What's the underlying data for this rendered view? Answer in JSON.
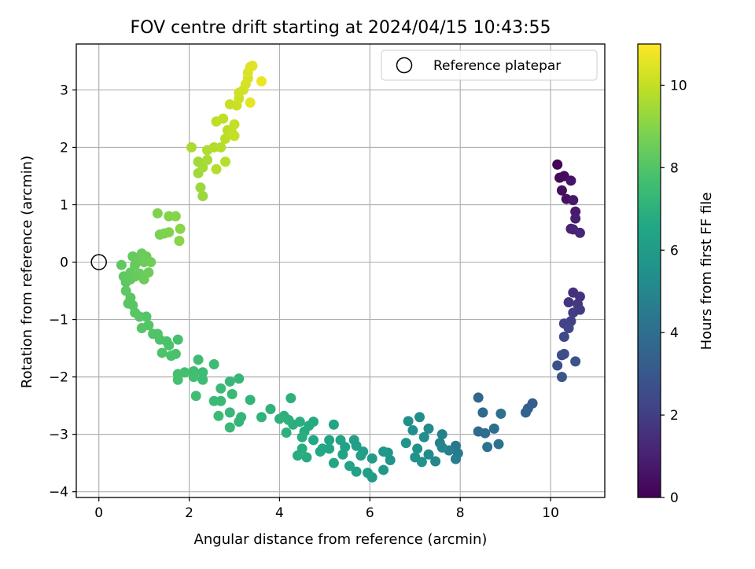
{
  "chart_data": {
    "type": "scatter",
    "title": "FOV centre drift starting at 2024/04/15 10:43:55",
    "xlabel": "Angular distance from reference (arcmin)",
    "ylabel": "Rotation from reference (arcmin)",
    "xlim": [
      -0.5,
      11.2
    ],
    "ylim": [
      -4.1,
      3.8
    ],
    "xticks": [
      0,
      2,
      4,
      6,
      8,
      10
    ],
    "yticks": [
      -4,
      -3,
      -2,
      -1,
      0,
      1,
      2,
      3
    ],
    "grid": true,
    "legend": {
      "location": "top-right",
      "entries": [
        "Reference platepar"
      ]
    },
    "reference_point": {
      "x": 0,
      "y": 0,
      "marker": "open-circle"
    },
    "colorbar": {
      "label": "Hours from first FF file",
      "range": [
        0,
        11
      ],
      "ticks": [
        0,
        2,
        4,
        6,
        8,
        10
      ],
      "colormap": "viridis"
    },
    "series": [
      {
        "points": [
          [
            10.15,
            1.7,
            0.1
          ],
          [
            10.2,
            1.47,
            0.2
          ],
          [
            10.3,
            1.5,
            0.3
          ],
          [
            10.25,
            1.25,
            0.4
          ],
          [
            10.35,
            1.1,
            0.5
          ],
          [
            10.45,
            1.42,
            0.6
          ],
          [
            10.5,
            1.08,
            0.7
          ],
          [
            10.55,
            0.88,
            0.8
          ],
          [
            10.55,
            0.76,
            0.9
          ],
          [
            10.45,
            0.58,
            1.0
          ],
          [
            10.5,
            0.57,
            1.1
          ],
          [
            10.65,
            0.51,
            1.2
          ],
          [
            10.5,
            -0.53,
            1.5
          ],
          [
            10.65,
            -0.6,
            1.6
          ],
          [
            10.4,
            -0.7,
            1.7
          ],
          [
            10.6,
            -0.73,
            1.8
          ],
          [
            10.65,
            -0.83,
            1.9
          ],
          [
            10.5,
            -0.88,
            2.0
          ],
          [
            10.45,
            -1.03,
            2.1
          ],
          [
            10.3,
            -1.07,
            2.2
          ],
          [
            10.4,
            -1.15,
            2.3
          ],
          [
            10.3,
            -1.3,
            2.4
          ],
          [
            10.25,
            -1.62,
            2.5
          ],
          [
            10.3,
            -1.6,
            2.6
          ],
          [
            10.15,
            -1.8,
            2.7
          ],
          [
            10.55,
            -1.73,
            2.8
          ],
          [
            10.25,
            -2.0,
            2.9
          ],
          [
            9.6,
            -2.46,
            3.2
          ],
          [
            9.5,
            -2.55,
            3.3
          ],
          [
            9.45,
            -2.62,
            3.4
          ],
          [
            8.4,
            -2.36,
            3.6
          ],
          [
            8.5,
            -2.62,
            3.7
          ],
          [
            8.4,
            -2.95,
            3.8
          ],
          [
            8.55,
            -2.98,
            3.9
          ],
          [
            8.75,
            -2.9,
            4.0
          ],
          [
            8.9,
            -2.64,
            4.05
          ],
          [
            8.85,
            -3.17,
            4.1
          ],
          [
            8.6,
            -3.22,
            4.2
          ],
          [
            7.9,
            -3.2,
            4.4
          ],
          [
            7.95,
            -3.33,
            4.5
          ],
          [
            7.9,
            -3.43,
            4.6
          ],
          [
            7.75,
            -3.28,
            4.7
          ],
          [
            7.6,
            -3.0,
            4.8
          ],
          [
            7.55,
            -3.15,
            4.9
          ],
          [
            7.6,
            -3.23,
            5.0
          ],
          [
            7.45,
            -3.47,
            5.1
          ],
          [
            7.3,
            -3.35,
            5.2
          ],
          [
            7.3,
            -2.9,
            5.2
          ],
          [
            7.2,
            -3.05,
            5.3
          ],
          [
            7.1,
            -2.7,
            5.35
          ],
          [
            6.85,
            -2.77,
            5.4
          ],
          [
            6.95,
            -2.93,
            5.45
          ],
          [
            7.05,
            -3.25,
            5.5
          ],
          [
            7.0,
            -3.4,
            5.55
          ],
          [
            7.15,
            -3.48,
            5.6
          ],
          [
            6.8,
            -3.15,
            5.65
          ],
          [
            6.45,
            -3.45,
            5.7
          ],
          [
            6.4,
            -3.32,
            5.8
          ],
          [
            6.3,
            -3.3,
            5.85
          ],
          [
            6.3,
            -3.62,
            5.9
          ],
          [
            6.05,
            -3.42,
            6.0
          ],
          [
            6.05,
            -3.75,
            6.05
          ],
          [
            5.95,
            -3.67,
            6.1
          ],
          [
            5.85,
            -3.3,
            6.1
          ],
          [
            5.8,
            -3.37,
            6.15
          ],
          [
            5.65,
            -3.1,
            6.2
          ],
          [
            5.7,
            -3.2,
            6.2
          ],
          [
            5.7,
            -3.65,
            6.25
          ],
          [
            5.55,
            -3.55,
            6.3
          ],
          [
            5.45,
            -3.22,
            6.3
          ],
          [
            5.4,
            -3.35,
            6.35
          ],
          [
            5.35,
            -3.1,
            6.4
          ],
          [
            5.2,
            -2.83,
            6.4
          ],
          [
            5.1,
            -3.1,
            6.45
          ],
          [
            5.1,
            -3.25,
            6.5
          ],
          [
            5.2,
            -3.5,
            6.5
          ],
          [
            4.95,
            -3.25,
            6.55
          ],
          [
            4.9,
            -3.3,
            6.6
          ],
          [
            4.75,
            -3.1,
            6.6
          ],
          [
            4.75,
            -2.78,
            6.65
          ],
          [
            4.65,
            -2.85,
            6.7
          ],
          [
            4.55,
            -2.95,
            6.7
          ],
          [
            4.6,
            -3.4,
            6.75
          ],
          [
            4.5,
            -3.25,
            6.8
          ],
          [
            4.4,
            -3.37,
            6.8
          ],
          [
            4.5,
            -3.05,
            6.85
          ],
          [
            4.45,
            -2.78,
            6.9
          ],
          [
            4.3,
            -2.83,
            6.9
          ],
          [
            4.2,
            -2.75,
            6.95
          ],
          [
            4.1,
            -2.68,
            6.95
          ],
          [
            4.15,
            -2.97,
            7.0
          ],
          [
            4.25,
            -2.37,
            7.0
          ],
          [
            4.0,
            -2.73,
            7.05
          ],
          [
            3.8,
            -2.56,
            7.1
          ],
          [
            3.6,
            -2.7,
            7.1
          ],
          [
            3.35,
            -2.4,
            7.15
          ],
          [
            3.15,
            -2.7,
            7.2
          ],
          [
            3.1,
            -2.78,
            7.2
          ],
          [
            3.1,
            -2.03,
            7.25
          ],
          [
            2.9,
            -2.08,
            7.3
          ],
          [
            2.9,
            -2.62,
            7.3
          ],
          [
            2.9,
            -2.88,
            7.35
          ],
          [
            2.95,
            -2.3,
            7.35
          ],
          [
            2.7,
            -2.2,
            7.4
          ],
          [
            2.7,
            -2.42,
            7.4
          ],
          [
            2.65,
            -2.68,
            7.45
          ],
          [
            2.55,
            -2.42,
            7.45
          ],
          [
            2.55,
            -1.78,
            7.5
          ],
          [
            2.3,
            -1.92,
            7.5
          ],
          [
            2.3,
            -2.05,
            7.55
          ],
          [
            2.2,
            -1.7,
            7.55
          ],
          [
            2.15,
            -2.33,
            7.6
          ],
          [
            2.1,
            -1.9,
            7.6
          ],
          [
            2.1,
            -2.0,
            7.65
          ],
          [
            1.9,
            -1.92,
            7.7
          ],
          [
            1.75,
            -1.95,
            7.7
          ],
          [
            1.75,
            -2.05,
            7.75
          ],
          [
            1.75,
            -1.35,
            7.75
          ],
          [
            1.7,
            -1.6,
            7.8
          ],
          [
            1.6,
            -1.63,
            7.8
          ],
          [
            1.55,
            -1.45,
            7.85
          ],
          [
            1.5,
            -1.38,
            7.85
          ],
          [
            1.4,
            -1.58,
            7.9
          ],
          [
            1.35,
            -1.35,
            7.9
          ],
          [
            1.3,
            -1.25,
            7.95
          ],
          [
            1.2,
            -1.25,
            7.95
          ],
          [
            1.1,
            -1.1,
            8.0
          ],
          [
            1.05,
            -0.95,
            8.0
          ],
          [
            0.95,
            -1.15,
            8.05
          ],
          [
            0.9,
            -0.95,
            8.05
          ],
          [
            0.8,
            -0.88,
            8.1
          ],
          [
            0.75,
            -0.75,
            8.1
          ],
          [
            0.7,
            -0.62,
            8.15
          ],
          [
            0.65,
            -0.72,
            8.15
          ],
          [
            0.6,
            -0.5,
            8.2
          ],
          [
            0.6,
            -0.35,
            8.2
          ],
          [
            0.55,
            -0.25,
            8.25
          ],
          [
            0.5,
            -0.05,
            8.25
          ],
          [
            0.7,
            -0.18,
            8.3
          ],
          [
            0.7,
            -0.3,
            8.3
          ],
          [
            0.8,
            -0.25,
            8.35
          ],
          [
            0.75,
            0.1,
            8.35
          ],
          [
            0.8,
            -0.05,
            8.4
          ],
          [
            0.85,
            0.03,
            8.4
          ],
          [
            0.9,
            -0.2,
            8.45
          ],
          [
            0.95,
            0.15,
            8.45
          ],
          [
            1.0,
            -0.3,
            8.5
          ],
          [
            1.05,
            0.1,
            8.5
          ],
          [
            1.1,
            -0.18,
            8.55
          ],
          [
            1.0,
            0.0,
            8.55
          ],
          [
            1.15,
            0.0,
            8.6
          ],
          [
            1.35,
            0.48,
            8.8
          ],
          [
            1.45,
            0.5,
            8.85
          ],
          [
            1.55,
            0.52,
            8.9
          ],
          [
            1.3,
            0.85,
            8.9
          ],
          [
            1.55,
            0.8,
            8.95
          ],
          [
            1.7,
            0.8,
            9.0
          ],
          [
            1.8,
            0.58,
            9.05
          ],
          [
            1.78,
            0.37,
            9.05
          ],
          [
            2.3,
            1.15,
            9.3
          ],
          [
            2.25,
            1.3,
            9.35
          ],
          [
            2.2,
            1.55,
            9.4
          ],
          [
            2.2,
            1.75,
            9.45
          ],
          [
            2.3,
            1.65,
            9.5
          ],
          [
            2.4,
            1.78,
            9.55
          ],
          [
            2.05,
            2.0,
            9.6
          ],
          [
            2.4,
            1.95,
            9.65
          ],
          [
            2.55,
            2.0,
            9.7
          ],
          [
            2.6,
            1.62,
            9.75
          ],
          [
            2.7,
            2.0,
            9.75
          ],
          [
            2.8,
            1.75,
            9.8
          ],
          [
            2.8,
            2.15,
            9.85
          ],
          [
            2.85,
            2.3,
            9.85
          ],
          [
            2.75,
            2.5,
            9.9
          ],
          [
            2.6,
            2.45,
            9.9
          ],
          [
            2.95,
            2.25,
            9.95
          ],
          [
            3.0,
            2.2,
            10.0
          ],
          [
            3.0,
            2.4,
            10.0
          ],
          [
            2.9,
            2.75,
            10.05
          ],
          [
            3.05,
            2.73,
            10.1
          ],
          [
            3.1,
            2.85,
            10.15
          ],
          [
            3.1,
            2.95,
            10.2
          ],
          [
            3.2,
            3.0,
            10.25
          ],
          [
            3.25,
            3.1,
            10.3
          ],
          [
            3.3,
            3.2,
            10.35
          ],
          [
            3.3,
            3.3,
            10.4
          ],
          [
            3.35,
            3.4,
            10.45
          ],
          [
            3.4,
            3.42,
            10.5
          ],
          [
            3.35,
            2.78,
            10.6
          ],
          [
            3.6,
            3.15,
            10.7
          ]
        ]
      }
    ]
  }
}
